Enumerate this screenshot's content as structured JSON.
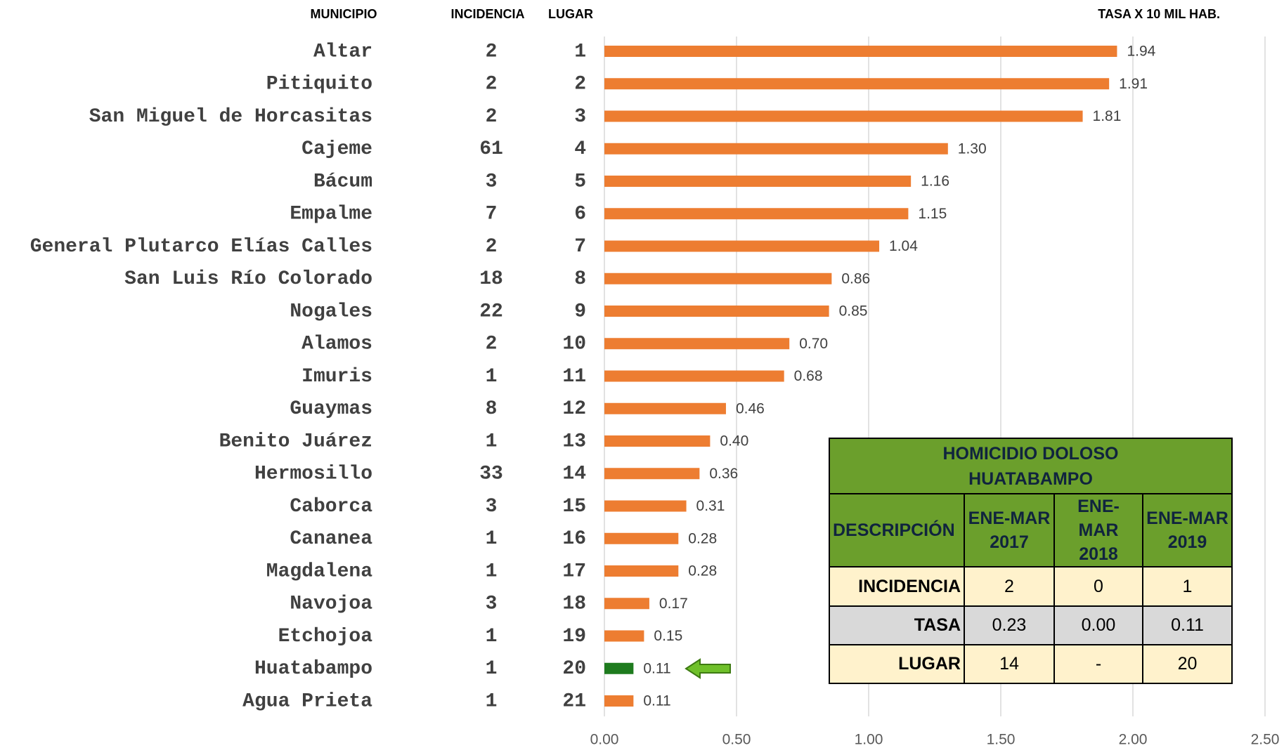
{
  "chart_data": {
    "type": "bar",
    "columns": [
      "MUNICIPIO",
      "INCIDENCIA",
      "LUGAR"
    ],
    "x_label": "TASA X 10 MIL HAB.",
    "categories": [
      "Altar",
      "Pitiquito",
      "San Miguel de Horcasitas",
      "Cajeme",
      "Bácum",
      "Empalme",
      "General Plutarco Elías Calles",
      "San Luis Río Colorado",
      "Nogales",
      "Alamos",
      "Imuris",
      "Guaymas",
      "Benito Juárez",
      "Hermosillo",
      "Caborca",
      "Cananea",
      "Magdalena",
      "Navojoa",
      "Etchojoa",
      "Huatabampo",
      "Agua Prieta"
    ],
    "incidencia": [
      2,
      2,
      2,
      61,
      3,
      7,
      2,
      18,
      22,
      2,
      1,
      8,
      1,
      33,
      3,
      1,
      1,
      3,
      1,
      1,
      1
    ],
    "lugar": [
      1,
      2,
      3,
      4,
      5,
      6,
      7,
      8,
      9,
      10,
      11,
      12,
      13,
      14,
      15,
      16,
      17,
      18,
      19,
      20,
      21
    ],
    "values": [
      1.94,
      1.91,
      1.81,
      1.3,
      1.16,
      1.15,
      1.04,
      0.86,
      0.85,
      0.7,
      0.68,
      0.46,
      0.4,
      0.36,
      0.31,
      0.28,
      0.28,
      0.17,
      0.15,
      0.11,
      0.11
    ],
    "value_labels": [
      "1.94",
      "1.91",
      "1.81",
      "1.30",
      "1.16",
      "1.15",
      "1.04",
      "0.86",
      "0.85",
      "0.70",
      "0.68",
      "0.46",
      "0.40",
      "0.36",
      "0.31",
      "0.28",
      "0.28",
      "0.17",
      "0.15",
      "0.11",
      "0.11"
    ],
    "colors": [
      "#ed7d31",
      "#ed7d31",
      "#ed7d31",
      "#ed7d31",
      "#ed7d31",
      "#ed7d31",
      "#ed7d31",
      "#ed7d31",
      "#ed7d31",
      "#ed7d31",
      "#ed7d31",
      "#ed7d31",
      "#ed7d31",
      "#ed7d31",
      "#ed7d31",
      "#ed7d31",
      "#ed7d31",
      "#ed7d31",
      "#ed7d31",
      "#1e7b1e",
      "#ed7d31"
    ],
    "xlim": [
      0,
      2.5
    ],
    "xticks": [
      {
        "value": 0,
        "label": "0.00"
      },
      {
        "value": 0.5,
        "label": "0.50"
      },
      {
        "value": 1,
        "label": "1.00"
      },
      {
        "value": 1.5,
        "label": "1.50"
      },
      {
        "value": 2,
        "label": "2.00"
      },
      {
        "value": 2.5,
        "label": "2.50"
      }
    ],
    "grid": true
  },
  "table": {
    "title_lines": [
      "HOMICIDIO DOLOSO",
      "HUATABAMPO"
    ],
    "header": [
      "DESCRIPCIÓN",
      "ENE-MAR 2017",
      "ENE-MAR 2018",
      "ENE-MAR 2019"
    ],
    "rows": [
      [
        "INCIDENCIA",
        "2",
        "0",
        "1"
      ],
      [
        "TASA",
        "0.23",
        "0.00",
        "0.11"
      ],
      [
        "LUGAR",
        "14",
        "-",
        "20"
      ]
    ]
  }
}
